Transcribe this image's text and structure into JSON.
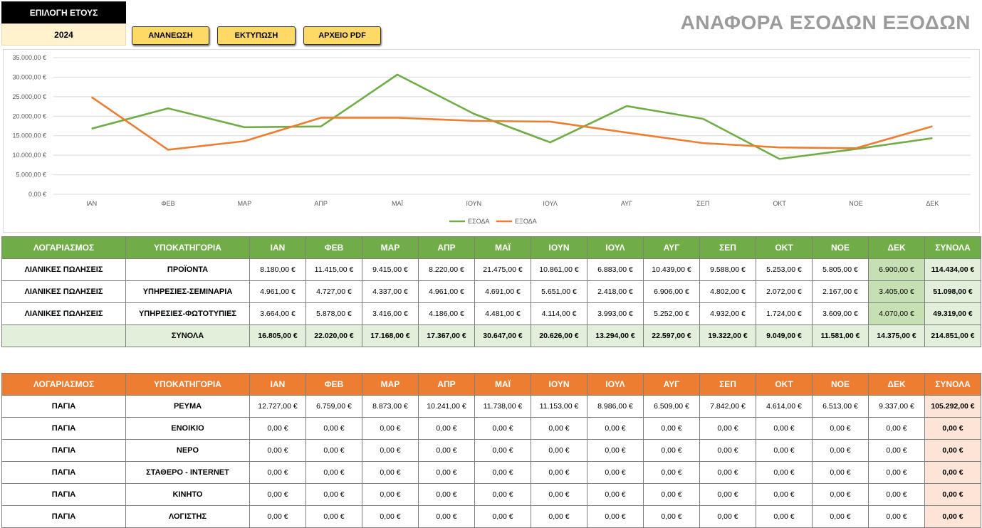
{
  "year_selector": {
    "label": "ΕΠΙΛΟΓΗ ΕΤΟΥΣ",
    "value": "2024"
  },
  "buttons": {
    "refresh": "ΑΝΑΝΕΩΣΗ",
    "print": "ΕΚΤΥΠΩΣΗ",
    "pdf": "ΑΡΧΕΙΟ PDF"
  },
  "report_title": "ΑΝΑΦΟΡΑ ΕΣΟΔΩΝ ΕΞΟΔΩΝ",
  "colors": {
    "income": "#70ad47",
    "expense": "#ed7d31",
    "title": "#9b9b9b",
    "button": "#ffd966"
  },
  "chart_data": {
    "type": "line",
    "categories": [
      "ΙΑΝ",
      "ΦΕΒ",
      "ΜΑΡ",
      "ΑΠΡ",
      "ΜΑΪ",
      "ΙΟΥΝ",
      "ΙΟΥΛ",
      "ΑΥΓ",
      "ΣΕΠ",
      "ΟΚΤ",
      "ΝΟΕ",
      "ΔΕΚ"
    ],
    "y_ticks": [
      "0,00 €",
      "5.000,00 €",
      "10.000,00 €",
      "15.000,00 €",
      "20.000,00 €",
      "25.000,00 €",
      "30.000,00 €",
      "35.000,00 €"
    ],
    "ylim": [
      0,
      35000
    ],
    "grid": true,
    "legend_position": "bottom",
    "series": [
      {
        "name": "ΕΣΟΔΑ",
        "color": "#70ad47",
        "values": [
          16805,
          22020,
          17168,
          17367,
          30647,
          20626,
          13294,
          22597,
          19322,
          9049,
          11581,
          14375
        ]
      },
      {
        "name": "ΕΞΟΔΑ",
        "color": "#ed7d31",
        "values": [
          24900,
          11400,
          13600,
          19600,
          19600,
          18800,
          18600,
          15800,
          13100,
          12000,
          11800,
          17400
        ]
      }
    ]
  },
  "income_table": {
    "headers": [
      "ΛΟΓΑΡΙΑΣΜΟΣ",
      "ΥΠΟΚΑΤΗΓΟΡΙΑ",
      "ΙΑΝ",
      "ΦΕΒ",
      "ΜΑΡ",
      "ΑΠΡ",
      "ΜΑΪ",
      "ΙΟΥΝ",
      "ΙΟΥΛ",
      "ΑΥΓ",
      "ΣΕΠ",
      "ΟΚΤ",
      "ΝΟΕ",
      "ΔΕΚ",
      "ΣΥΝΟΛΑ"
    ],
    "rows": [
      {
        "account": "ΛΙΑΝΙΚΕΣ ΠΩΛΗΣΕΙΣ",
        "subcategory": "ΠΡΟΪΟΝΤΑ",
        "months": [
          "8.180,00 €",
          "11.415,00 €",
          "9.415,00 €",
          "8.220,00 €",
          "21.475,00 €",
          "10.861,00 €",
          "6.883,00 €",
          "10.439,00 €",
          "9.588,00 €",
          "5.253,00 €",
          "5.805,00 €",
          "6.900,00 €"
        ],
        "total": "114.434,00 €"
      },
      {
        "account": "ΛΙΑΝΙΚΕΣ ΠΩΛΗΣΕΙΣ",
        "subcategory": "ΥΠΗΡΕΣΙΕΣ-ΣΕΜΙΝΑΡΙΑ",
        "months": [
          "4.961,00 €",
          "4.727,00 €",
          "4.337,00 €",
          "4.961,00 €",
          "4.691,00 €",
          "5.651,00 €",
          "2.418,00 €",
          "6.906,00 €",
          "4.802,00 €",
          "2.072,00 €",
          "2.167,00 €",
          "3.405,00 €"
        ],
        "total": "51.098,00 €"
      },
      {
        "account": "ΛΙΑΝΙΚΕΣ ΠΩΛΗΣΕΙΣ",
        "subcategory": "ΥΠΗΡΕΣΙΕΣ-ΦΩΤΟΤΥΠΙΕΣ",
        "months": [
          "3.664,00 €",
          "5.878,00 €",
          "3.416,00 €",
          "4.186,00 €",
          "4.481,00 €",
          "4.114,00 €",
          "3.993,00 €",
          "5.252,00 €",
          "4.932,00 €",
          "1.724,00 €",
          "3.609,00 €",
          "4.070,00 €"
        ],
        "total": "49.319,00 €"
      }
    ],
    "totals": {
      "account": "",
      "subcategory": "ΣΥΝΟΛΑ",
      "months": [
        "16.805,00 €",
        "22.020,00 €",
        "17.168,00 €",
        "17.367,00 €",
        "30.647,00 €",
        "20.626,00 €",
        "13.294,00 €",
        "22.597,00 €",
        "19.322,00 €",
        "9.049,00 €",
        "11.581,00 €",
        "14.375,00 €"
      ],
      "total": "214.851,00 €"
    }
  },
  "expense_table": {
    "headers": [
      "ΛΟΓΑΡΙΑΣΜΟΣ",
      "ΥΠΟΚΑΤΗΓΟΡΙΑ",
      "ΙΑΝ",
      "ΦΕΒ",
      "ΜΑΡ",
      "ΑΠΡ",
      "ΜΑΪ",
      "ΙΟΥΝ",
      "ΙΟΥΛ",
      "ΑΥΓ",
      "ΣΕΠ",
      "ΟΚΤ",
      "ΝΟΕ",
      "ΔΕΚ",
      "ΣΥΝΟΛΑ"
    ],
    "rows": [
      {
        "account": "ΠΑΓΙΑ",
        "subcategory": "ΡΕΥΜΑ",
        "months": [
          "12.727,00 €",
          "6.759,00 €",
          "8.873,00 €",
          "10.241,00 €",
          "11.738,00 €",
          "11.153,00 €",
          "8.986,00 €",
          "6.509,00 €",
          "7.842,00 €",
          "4.614,00 €",
          "6.513,00 €",
          "9.337,00 €"
        ],
        "total": "105.292,00 €"
      },
      {
        "account": "ΠΑΓΙΑ",
        "subcategory": "ΕΝΟΙΚΙΟ",
        "months": [
          "0,00 €",
          "0,00 €",
          "0,00 €",
          "0,00 €",
          "0,00 €",
          "0,00 €",
          "0,00 €",
          "0,00 €",
          "0,00 €",
          "0,00 €",
          "0,00 €",
          "0,00 €"
        ],
        "total": "0,00 €"
      },
      {
        "account": "ΠΑΓΙΑ",
        "subcategory": "ΝΕΡΟ",
        "months": [
          "0,00 €",
          "0,00 €",
          "0,00 €",
          "0,00 €",
          "0,00 €",
          "0,00 €",
          "0,00 €",
          "0,00 €",
          "0,00 €",
          "0,00 €",
          "0,00 €",
          "0,00 €"
        ],
        "total": "0,00 €"
      },
      {
        "account": "ΠΑΓΙΑ",
        "subcategory": "ΣΤΑΘΕΡΟ - INTERNET",
        "months": [
          "0,00 €",
          "0,00 €",
          "0,00 €",
          "0,00 €",
          "0,00 €",
          "0,00 €",
          "0,00 €",
          "0,00 €",
          "0,00 €",
          "0,00 €",
          "0,00 €",
          "0,00 €"
        ],
        "total": "0,00 €"
      },
      {
        "account": "ΠΑΓΙΑ",
        "subcategory": "ΚΙΝΗΤΟ",
        "months": [
          "0,00 €",
          "0,00 €",
          "0,00 €",
          "0,00 €",
          "0,00 €",
          "0,00 €",
          "0,00 €",
          "0,00 €",
          "0,00 €",
          "0,00 €",
          "0,00 €",
          "0,00 €"
        ],
        "total": "0,00 €"
      },
      {
        "account": "ΠΑΓΙΑ",
        "subcategory": "ΛΟΓΙΣΤΗΣ",
        "months": [
          "0,00 €",
          "0,00 €",
          "0,00 €",
          "0,00 €",
          "0,00 €",
          "0,00 €",
          "0,00 €",
          "0,00 €",
          "0,00 €",
          "0,00 €",
          "0,00 €",
          "0,00 €"
        ],
        "total": "0,00 €"
      }
    ]
  }
}
